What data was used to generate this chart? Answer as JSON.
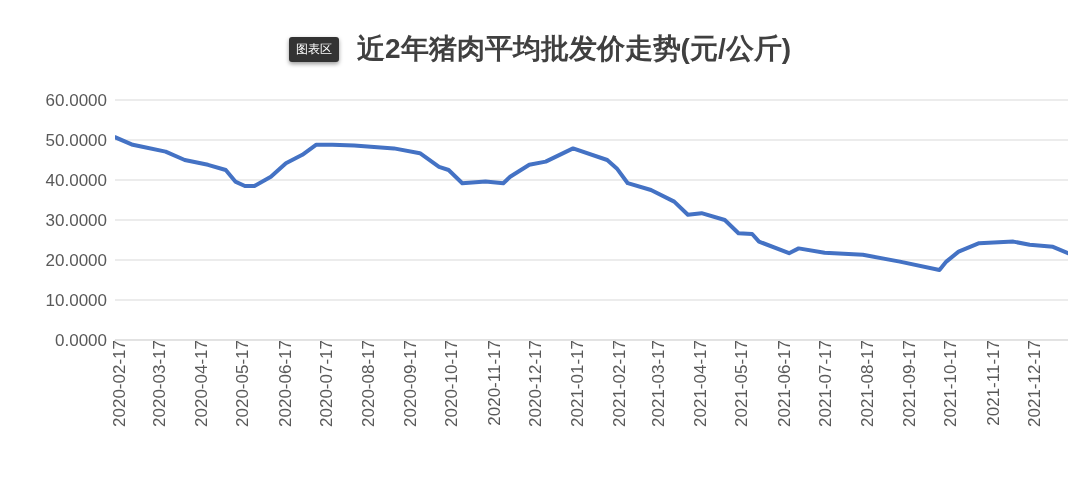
{
  "chart_data": {
    "type": "line",
    "title": "近2年猪肉平均批发价走势(元/公斤)",
    "annotations": [
      "图表区"
    ],
    "x": [
      "2020-02-17",
      "2020-03-01",
      "2020-03-08",
      "2020-03-25",
      "2020-04-08",
      "2020-04-25",
      "2020-05-08",
      "2020-05-15",
      "2020-05-22",
      "2020-05-29",
      "2020-06-10",
      "2020-06-21",
      "2020-07-03",
      "2020-07-13",
      "2020-07-25",
      "2020-08-10",
      "2020-09-08",
      "2020-09-27",
      "2020-10-11",
      "2020-10-18",
      "2020-10-28",
      "2020-11-14",
      "2020-11-27",
      "2020-12-02",
      "2020-12-16",
      "2020-12-28",
      "2021-01-17",
      "2021-02-11",
      "2021-02-18",
      "2021-02-26",
      "2021-03-15",
      "2021-04-01",
      "2021-04-11",
      "2021-04-21",
      "2021-05-08",
      "2021-05-18",
      "2021-05-28",
      "2021-06-02",
      "2021-06-24",
      "2021-07-01",
      "2021-07-20",
      "2021-08-17",
      "2021-09-13",
      "2021-10-12",
      "2021-10-17",
      "2021-10-26",
      "2021-11-10",
      "2021-12-05",
      "2021-12-17",
      "2022-01-03",
      "2022-01-14"
    ],
    "series": [
      {
        "color": "#4472c4",
        "values": [
          50.7,
          48.8,
          48.3,
          47.1,
          45,
          43.8,
          42.5,
          39.6,
          38.5,
          38.5,
          40.8,
          44.2,
          46.3,
          48.8,
          48.8,
          48.6,
          47.9,
          46.7,
          43.3,
          42.5,
          39.2,
          39.6,
          39.2,
          40.8,
          43.8,
          44.6,
          47.9,
          45,
          42.9,
          39.2,
          37.5,
          34.6,
          31.3,
          31.7,
          30,
          26.7,
          26.5,
          24.6,
          21.7,
          22.9,
          21.8,
          21.3,
          19.6,
          17.5,
          19.6,
          22.1,
          24.2,
          24.6,
          23.8,
          23.3,
          21.7
        ]
      }
    ],
    "xlim": [
      "2020-02-17",
      "2022-01-14"
    ],
    "xticks": [
      "2020-02-17",
      "2020-03-17",
      "2020-04-17",
      "2020-05-17",
      "2020-06-17",
      "2020-07-17",
      "2020-08-17",
      "2020-09-17",
      "2020-10-17",
      "2020-11-17",
      "2020-12-17",
      "2021-01-17",
      "2021-02-17",
      "2021-03-17",
      "2021-04-17",
      "2021-05-17",
      "2021-06-17",
      "2021-07-17",
      "2021-08-17",
      "2021-09-17",
      "2021-10-17",
      "2021-11-17",
      "2021-12-17"
    ],
    "ylim": [
      0,
      60
    ],
    "yticks": [
      {
        "value": 0,
        "label": "0.0000"
      },
      {
        "value": 10,
        "label": "10.0000"
      },
      {
        "value": 20,
        "label": "20.0000"
      },
      {
        "value": 30,
        "label": "30.0000"
      },
      {
        "value": 40,
        "label": "40.0000"
      },
      {
        "value": 50,
        "label": "50.0000"
      },
      {
        "value": 60,
        "label": "60.0000"
      }
    ],
    "grid": "y",
    "legend": false,
    "marker": "none",
    "line_style": "solid"
  }
}
